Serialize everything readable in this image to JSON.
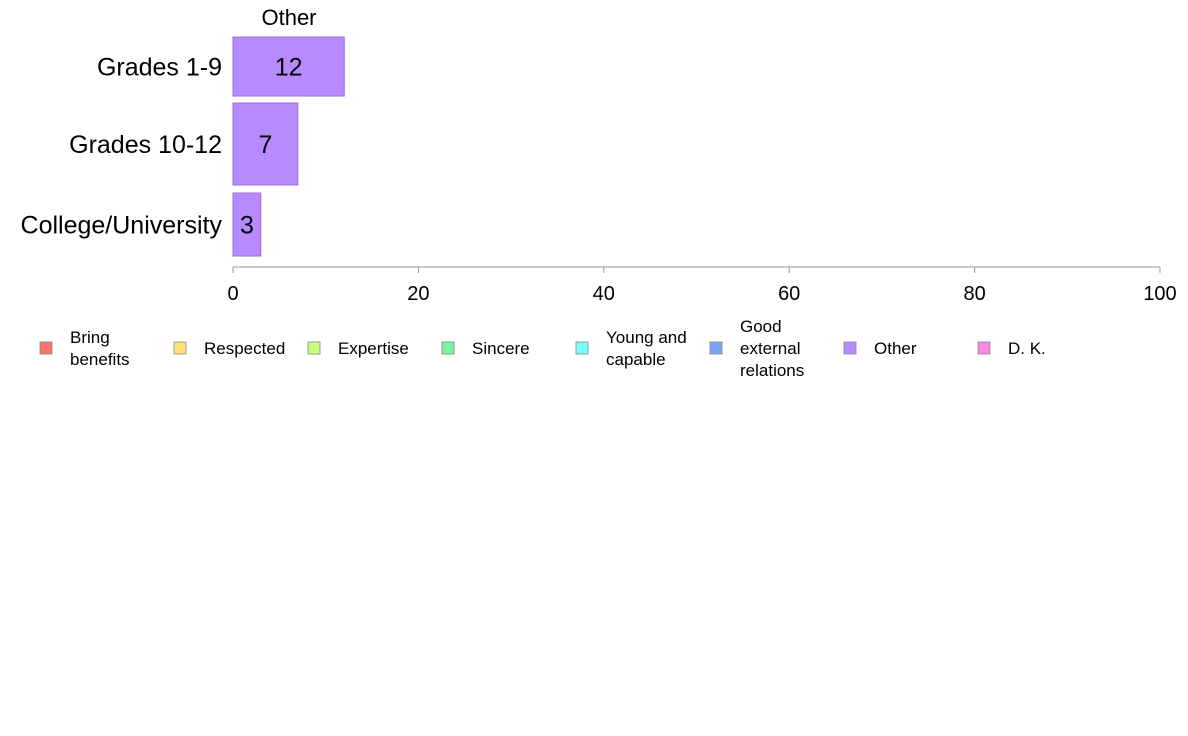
{
  "chart_data": {
    "type": "bar",
    "orientation": "horizontal",
    "stacked": true,
    "panel_title": "Other",
    "categories": [
      "Grades 1-9",
      "Grades 10-12",
      "College/University"
    ],
    "series": [
      {
        "name": "Bring benefits",
        "label_lines": [
          "Bring",
          "benefits"
        ],
        "color": "#F8766D",
        "values": [
          0,
          0,
          0
        ]
      },
      {
        "name": "Respected",
        "label_lines": [
          "Respected"
        ],
        "color": "#FFE37A",
        "values": [
          0,
          0,
          0
        ]
      },
      {
        "name": "Expertise",
        "label_lines": [
          "Expertise"
        ],
        "color": "#C6FF7A",
        "values": [
          0,
          0,
          0
        ]
      },
      {
        "name": "Sincere",
        "label_lines": [
          "Sincere"
        ],
        "color": "#7AF5A0",
        "values": [
          0,
          0,
          0
        ]
      },
      {
        "name": "Young and capable",
        "label_lines": [
          "Young and",
          "capable"
        ],
        "color": "#7AFFF5",
        "values": [
          0,
          0,
          0
        ]
      },
      {
        "name": "Good external relations",
        "label_lines": [
          "Good",
          "external",
          "relations"
        ],
        "color": "#7AA6F5",
        "values": [
          0,
          0,
          0
        ]
      },
      {
        "name": "Other",
        "label_lines": [
          "Other"
        ],
        "color": "#B98AFF",
        "values": [
          12,
          7,
          3
        ]
      },
      {
        "name": "D. K.",
        "label_lines": [
          "D. K."
        ],
        "color": "#FF85E6",
        "values": [
          0,
          0,
          0
        ]
      }
    ],
    "xlim": [
      0,
      100
    ],
    "xticks": [
      "0",
      "20",
      "40",
      "60",
      "80",
      "100"
    ],
    "xlabel": "",
    "ylabel": "",
    "grid": false,
    "legend_position": "bottom"
  }
}
